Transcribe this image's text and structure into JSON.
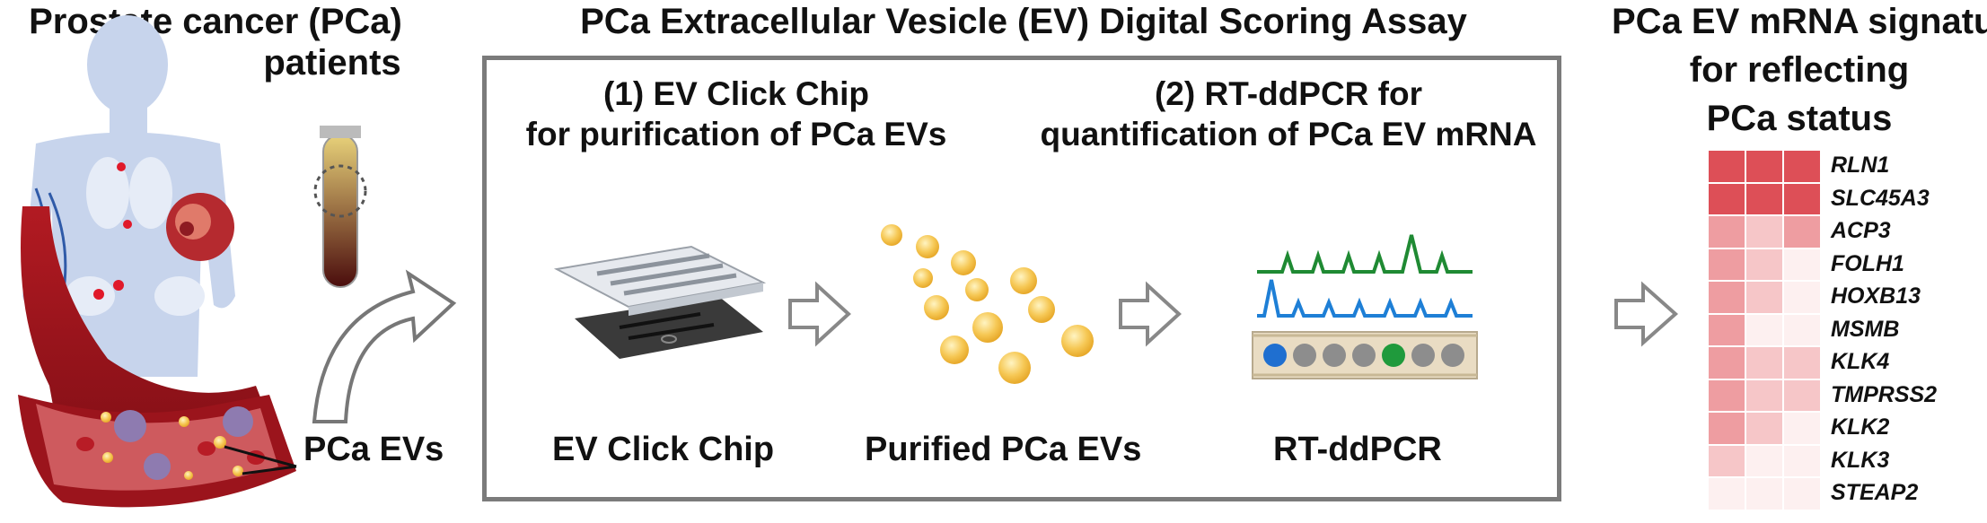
{
  "left_panel": {
    "title_line1": "Prostate cancer (PCa)",
    "title_line2": "patients",
    "ev_label": "PCa EVs"
  },
  "assay": {
    "title": "PCa Extracellular Vesicle (EV) Digital Scoring Assay",
    "step1_line1": "(1) EV Click Chip",
    "step1_line2": "for purification of PCa EVs",
    "step2_line1": "(2) RT-ddPCR for",
    "step2_line2": "quantification of PCa EV mRNA",
    "label_chip": "EV Click Chip",
    "label_evs": "Purified PCa EVs",
    "label_pcr": "RT-ddPCR"
  },
  "right_panel": {
    "title_line1": "PCa EV mRNA signatures",
    "title_line2": "for reflecting",
    "title_line3": "PCa status",
    "genes": [
      "RLN1",
      "SLC45A3",
      "ACP3",
      "FOLH1",
      "HOXB13",
      "MSMB",
      "KLK4",
      "TMPRSS2",
      "KLK2",
      "KLK3",
      "STEAP2"
    ],
    "heatmap_levels": [
      [
        3,
        3,
        3
      ],
      [
        3,
        3,
        3
      ],
      [
        2,
        1,
        2
      ],
      [
        2,
        1,
        0
      ],
      [
        2,
        1,
        0
      ],
      [
        2,
        0,
        0
      ],
      [
        2,
        1,
        1
      ],
      [
        2,
        1,
        1
      ],
      [
        2,
        1,
        0
      ],
      [
        1,
        0,
        0
      ],
      [
        0,
        0,
        0
      ]
    ],
    "heatmap_colors": [
      "#fdf0f0",
      "#f6c6c8",
      "#ee9da1",
      "#dd4f57"
    ]
  }
}
